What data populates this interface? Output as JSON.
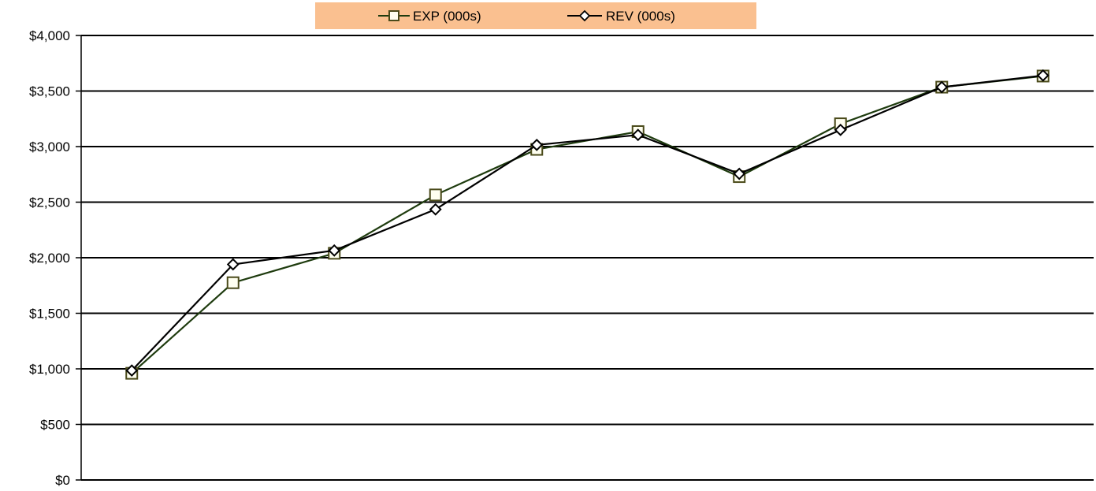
{
  "chart_data": {
    "type": "line",
    "title": "",
    "xlabel": "",
    "ylabel": "",
    "ylim": [
      0,
      4000
    ],
    "y_ticks": [
      "$0",
      "$500",
      "$1,000",
      "$1,500",
      "$2,000",
      "$2,500",
      "$3,000",
      "$3,500",
      "$4,000"
    ],
    "y_tick_values": [
      0,
      500,
      1000,
      1500,
      2000,
      2500,
      3000,
      3500,
      4000
    ],
    "x": [
      1,
      2,
      3,
      4,
      5,
      6,
      7,
      8,
      9,
      10
    ],
    "grid": "horizontal",
    "legend_position": "top",
    "legend_background": "#FAC090",
    "series": [
      {
        "name": "EXP (000s)",
        "marker": "square",
        "color": "#1E3B0E",
        "marker_fill": "#FFFFF0",
        "marker_stroke": "#4A4A1A",
        "values": [
          960,
          1775,
          2040,
          2565,
          2975,
          3135,
          2730,
          3205,
          3535,
          3635
        ]
      },
      {
        "name": "REV (000s)",
        "marker": "diamond",
        "color": "#000000",
        "marker_fill": "#FFFFFF",
        "marker_stroke": "#000000",
        "values": [
          985,
          1940,
          2065,
          2435,
          3015,
          3105,
          2755,
          3150,
          3535,
          3640
        ]
      }
    ]
  }
}
